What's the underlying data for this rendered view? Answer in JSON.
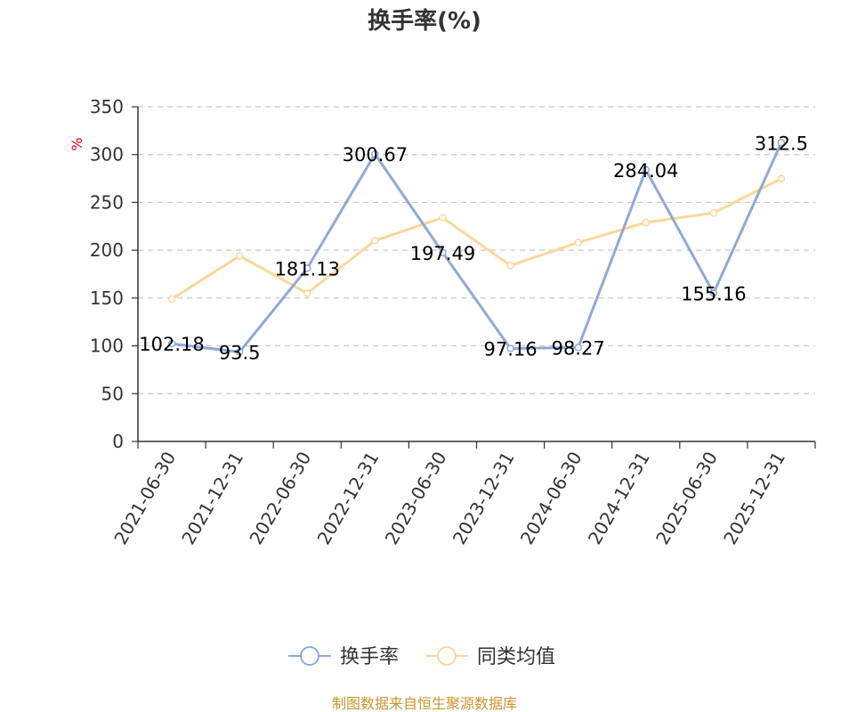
{
  "chart_data": {
    "type": "line",
    "title": "换手率(%)",
    "ylabel": "%",
    "ylim": [
      0,
      350
    ],
    "yticks": [
      0,
      50,
      100,
      150,
      200,
      250,
      300,
      350
    ],
    "grid": true,
    "legend_position": "bottom",
    "categories": [
      "2021-06-30",
      "2021-12-31",
      "2022-06-30",
      "2022-12-31",
      "2023-06-30",
      "2023-12-31",
      "2024-06-30",
      "2024-12-31",
      "2025-06-30",
      "2025-12-31"
    ],
    "series": [
      {
        "name": "换手率",
        "color": "#8eaad6",
        "values": [
          102.18,
          93.5,
          181.13,
          300.67,
          197.49,
          97.16,
          98.27,
          284.04,
          155.16,
          312.5
        ],
        "labels": [
          "102.18",
          "93.5",
          "181.13",
          "300.67",
          "197.49",
          "97.16",
          "98.27",
          "284.04",
          "155.16",
          "312.5"
        ]
      },
      {
        "name": "同类均值",
        "color": "#fad79a",
        "values": [
          149,
          194,
          155,
          210,
          234,
          184,
          208,
          229,
          239,
          275
        ]
      }
    ]
  },
  "source": "制图数据来自恒生聚源数据库"
}
